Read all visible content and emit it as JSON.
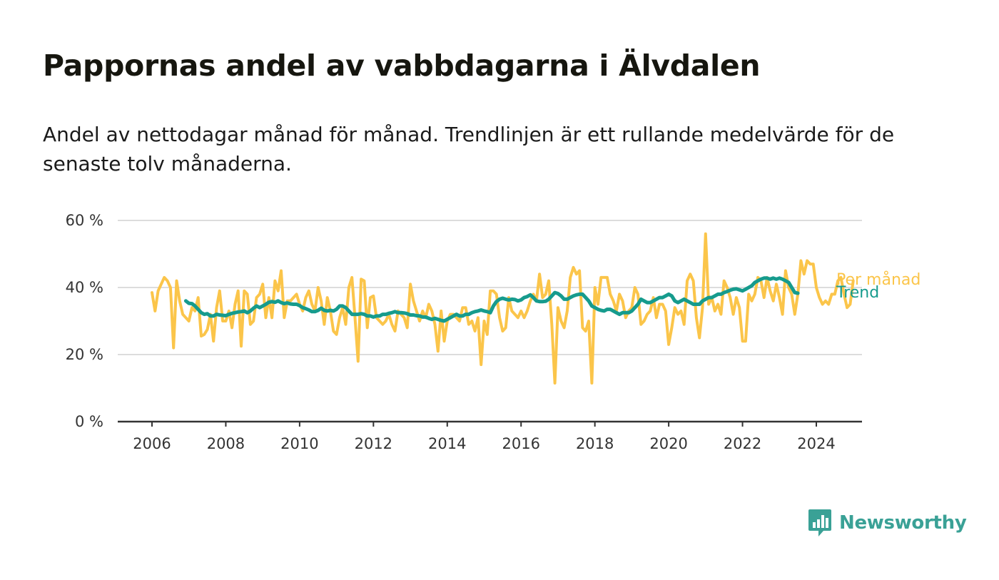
{
  "title": "Pappornas andel av vabbdagarna i Älvdalen",
  "subtitle": "Andel av nettodagar månad för månad. Trendlinjen är ett rullande medelvärde för de senaste tolv månaderna.",
  "brand": "Newsworthy",
  "colors": {
    "monthly": "#fbc54a",
    "trend": "#169b8d",
    "grid": "#dcdcdc",
    "axis": "#333333",
    "brand": "#3aa196"
  },
  "chart_data": {
    "type": "line",
    "title": "Pappornas andel av vabbdagarna i Älvdalen",
    "ylim": [
      0,
      60
    ],
    "yticks": [
      0,
      20,
      40,
      60
    ],
    "ytick_labels": [
      "0 %",
      "20 %",
      "40 %",
      "60 %"
    ],
    "xlim": [
      2006,
      2025.2
    ],
    "xticks": [
      2006,
      2008,
      2010,
      2012,
      2014,
      2016,
      2018,
      2020,
      2022,
      2024
    ],
    "xtick_labels": [
      "2006",
      "2008",
      "2010",
      "2012",
      "2014",
      "2016",
      "2018",
      "2020",
      "2022",
      "2024"
    ],
    "grid": true,
    "legend": "direct labels at line ends (right)",
    "series": [
      {
        "name": "Per månad",
        "color": "#fbc54a",
        "start": "2006-01",
        "x_step": "month",
        "values": [
          38.5,
          33,
          39,
          41,
          43,
          42,
          40,
          22,
          42,
          36,
          32,
          31,
          30,
          34,
          33,
          37,
          25.5,
          26,
          27.5,
          32,
          24,
          34,
          39,
          30,
          30,
          33,
          28,
          35,
          39,
          22.5,
          39,
          38,
          29,
          30,
          37,
          38,
          41,
          31,
          37,
          31,
          42,
          39,
          45,
          31,
          36,
          36,
          37,
          38,
          35,
          33,
          37,
          39,
          35,
          33,
          40,
          36,
          29,
          37,
          33,
          27,
          26,
          31,
          34,
          29,
          40,
          43,
          31,
          18,
          42.5,
          42,
          28,
          37,
          37.5,
          31,
          30,
          29,
          30,
          32,
          29,
          27,
          33,
          32,
          31,
          28,
          41,
          36,
          33,
          30,
          33,
          31,
          35,
          33,
          29,
          21,
          33,
          24,
          30,
          32,
          32,
          31,
          30,
          34,
          34,
          29,
          30,
          27,
          31,
          17,
          30,
          26,
          39,
          39,
          38,
          31,
          27,
          28,
          37,
          33,
          32,
          31,
          33,
          31,
          33,
          36,
          38,
          36,
          44,
          37,
          38,
          42,
          29,
          11.5,
          34,
          30,
          28,
          33,
          43,
          46,
          44,
          45,
          28,
          27,
          30,
          11.5,
          40,
          35,
          43,
          43,
          43,
          38,
          36,
          33,
          38,
          36,
          31,
          33,
          34,
          40,
          38,
          29,
          30,
          32,
          33,
          37,
          31,
          35,
          35,
          33,
          23,
          28,
          34,
          32,
          33,
          29,
          42,
          44,
          42,
          31,
          25,
          34,
          56,
          35,
          37,
          33,
          35,
          32,
          42,
          40,
          37,
          32,
          37,
          34,
          24,
          24,
          38,
          36,
          38,
          43,
          42,
          37,
          43,
          39,
          36,
          41,
          37,
          32,
          45,
          40,
          38,
          32,
          38,
          48,
          44,
          48,
          47,
          47,
          40,
          37,
          35,
          36,
          35,
          38,
          38,
          42,
          43,
          38,
          34,
          35,
          42
        ]
      },
      {
        "name": "Trend",
        "color": "#169b8d",
        "start": "2006-12",
        "x_step": "month",
        "values": [
          36,
          35.3,
          35.2,
          34.5,
          33.5,
          32.5,
          32,
          32.2,
          31.5,
          31.5,
          32,
          31.8,
          31.7,
          31.6,
          32,
          32.3,
          32.5,
          32.7,
          32.8,
          33,
          32.5,
          33,
          33.8,
          34.5,
          34,
          34.5,
          35,
          35.6,
          35.8,
          35.6,
          36,
          35.5,
          35.2,
          35.4,
          35.1,
          35,
          35,
          34.6,
          34,
          33.7,
          33.3,
          32.8,
          32.8,
          33.2,
          33.8,
          33.2,
          33,
          33.2,
          33,
          33.5,
          34.5,
          34.5,
          34,
          33,
          32,
          32,
          32,
          32.2,
          32,
          31.5,
          31.5,
          31.2,
          31.5,
          31.5,
          32,
          32,
          32.3,
          32.5,
          32.8,
          32.5,
          32.5,
          32.4,
          32.2,
          31.8,
          31.8,
          31.6,
          31.5,
          31.2,
          31.2,
          30.8,
          30.5,
          30.8,
          30.5,
          30.2,
          30,
          30.5,
          31,
          31.5,
          32,
          31.5,
          31.5,
          32,
          32,
          32.5,
          32.8,
          33,
          33.3,
          33,
          32.8,
          32.5,
          34.5,
          35.8,
          36.5,
          36.8,
          36.5,
          36.3,
          36.5,
          36.4,
          36,
          36.3,
          37,
          37.3,
          37.8,
          37,
          36,
          35.8,
          35.8,
          35.9,
          36.5,
          37.5,
          38.5,
          38.2,
          37.5,
          36.5,
          36.5,
          37,
          37.5,
          37.8,
          38,
          38,
          37,
          36,
          34.5,
          34,
          33.5,
          33.2,
          33,
          33.5,
          33.5,
          33,
          32.5,
          32,
          32.5,
          32.5,
          32.5,
          33,
          34,
          35,
          36.5,
          36,
          35.5,
          35.5,
          36,
          36.5,
          37,
          37,
          37.5,
          38,
          37.5,
          36,
          35.5,
          36,
          36.5,
          36,
          35.5,
          35,
          35,
          35,
          36,
          36.5,
          37,
          37,
          37.5,
          38,
          38,
          38.5,
          38.8,
          39.2,
          39.5,
          39.6,
          39.3,
          39,
          39.5,
          40,
          40.5,
          41.5,
          42,
          42.5,
          42.8,
          42.8,
          42.5,
          42.8,
          42.5,
          42.8,
          42.5,
          42,
          41.5,
          40,
          38.5,
          38.3
        ]
      }
    ]
  }
}
